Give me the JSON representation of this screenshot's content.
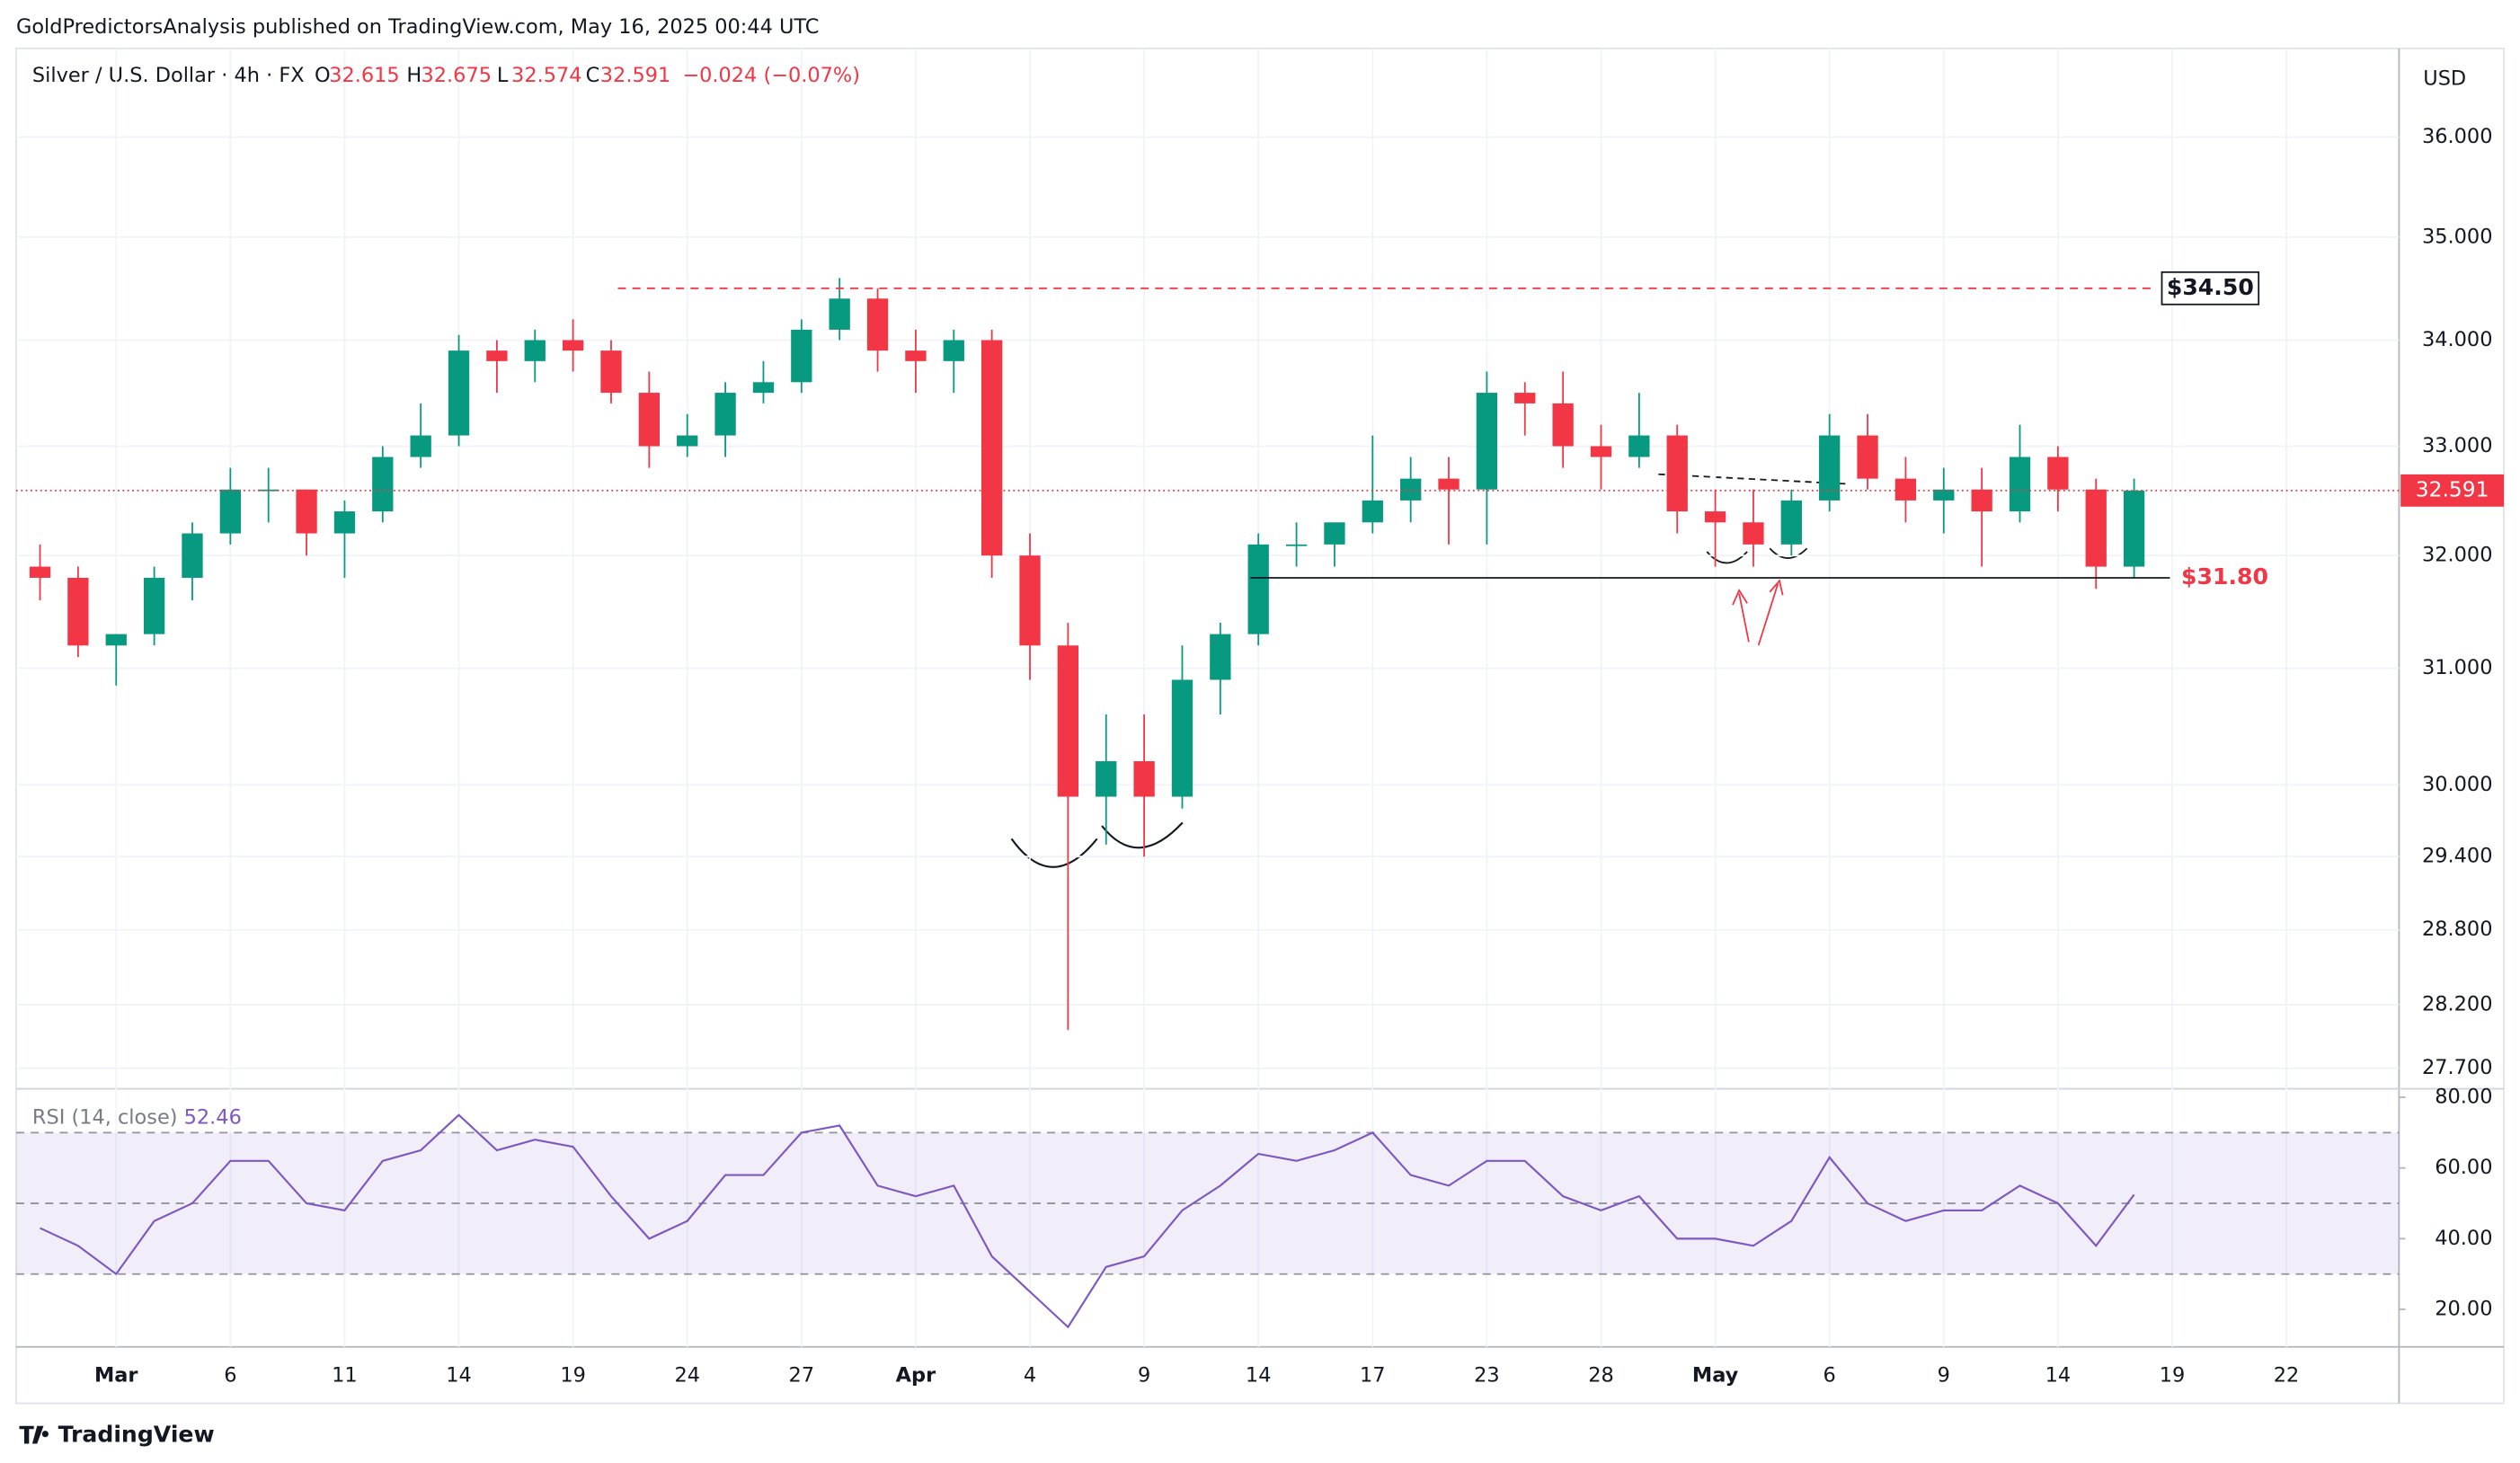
{
  "header": {
    "publisher": "GoldPredictorsAnalysis published on TradingView.com, May 16, 2025 00:44 UTC",
    "footer": "TradingView"
  },
  "chart_data": [
    {
      "type": "candlestick",
      "title": "Silver / U.S. Dollar · 4h · FX",
      "ohlc_labels": [
        "O",
        "H",
        "L",
        "C"
      ],
      "ohlc_values": [
        32.615,
        32.675,
        32.574,
        32.591
      ],
      "change": "−0.024 (−0.07%)",
      "currency": "USD",
      "log_scale": true,
      "up_color": "#089981",
      "down_color": "#f23645",
      "categories": [
        null,
        null,
        "Mar",
        null,
        null,
        "6",
        null,
        null,
        "11",
        null,
        null,
        "14",
        null,
        null,
        "19",
        null,
        null,
        "24",
        null,
        null,
        "27",
        null,
        null,
        "Apr",
        null,
        null,
        "4",
        null,
        null,
        "9",
        null,
        null,
        "14",
        null,
        null,
        "17",
        null,
        null,
        "23",
        null,
        null,
        "28",
        null,
        null,
        "May",
        null,
        null,
        "6",
        null,
        null,
        "9",
        null,
        null,
        "14",
        null,
        null,
        "19",
        null,
        null,
        "22"
      ],
      "open": [
        31.9,
        31.8,
        31.2,
        31.3,
        31.8,
        32.2,
        32.6,
        32.6,
        32.2,
        32.4,
        32.9,
        33.1,
        33.9,
        33.8,
        34.0,
        33.9,
        33.5,
        33.0,
        33.1,
        33.5,
        33.6,
        34.1,
        34.4,
        33.9,
        33.8,
        34.0,
        32.0,
        31.2,
        29.9,
        30.2,
        29.9,
        30.9,
        31.3,
        32.1,
        32.1,
        32.3,
        32.5,
        32.7,
        32.6,
        33.5,
        33.4,
        33.0,
        32.9,
        33.1,
        32.4,
        32.3,
        32.1,
        32.5,
        33.1,
        32.7,
        32.5,
        32.6,
        32.4,
        32.9,
        32.6,
        31.9,
        null,
        null,
        null,
        null
      ],
      "high": [
        32.1,
        31.9,
        31.3,
        31.9,
        32.3,
        32.8,
        32.8,
        32.6,
        32.5,
        33.0,
        33.4,
        34.05,
        34.0,
        34.1,
        34.2,
        34.0,
        33.7,
        33.3,
        33.6,
        33.8,
        34.2,
        34.6,
        34.5,
        34.1,
        34.1,
        34.1,
        32.2,
        31.4,
        30.6,
        30.6,
        31.2,
        31.4,
        32.2,
        32.3,
        32.3,
        33.1,
        32.9,
        32.9,
        33.7,
        33.6,
        33.7,
        33.2,
        33.5,
        33.2,
        32.6,
        32.6,
        32.6,
        33.3,
        33.3,
        32.9,
        32.8,
        32.8,
        33.2,
        33.0,
        32.7,
        32.7,
        null,
        null,
        null,
        null
      ],
      "low": [
        31.6,
        31.1,
        30.85,
        31.2,
        31.6,
        32.1,
        32.3,
        32.0,
        31.8,
        32.3,
        32.8,
        33.0,
        33.5,
        33.6,
        33.7,
        33.4,
        32.8,
        32.9,
        32.9,
        33.4,
        33.5,
        34.0,
        33.7,
        33.5,
        33.5,
        31.8,
        30.9,
        28.0,
        29.5,
        29.4,
        29.8,
        30.6,
        31.2,
        31.9,
        31.9,
        32.2,
        32.3,
        32.1,
        32.1,
        33.1,
        32.8,
        32.6,
        32.8,
        32.2,
        31.9,
        31.9,
        32.0,
        32.4,
        32.6,
        32.3,
        32.2,
        31.9,
        32.3,
        32.4,
        31.7,
        31.8,
        null,
        null,
        null,
        null
      ],
      "close": [
        31.8,
        31.2,
        31.3,
        31.8,
        32.2,
        32.6,
        32.6,
        32.2,
        32.4,
        32.9,
        33.1,
        33.9,
        33.8,
        34.0,
        33.9,
        33.5,
        33.0,
        33.1,
        33.5,
        33.6,
        34.1,
        34.4,
        33.9,
        33.8,
        34.0,
        32.0,
        31.2,
        29.9,
        30.2,
        29.9,
        30.9,
        31.3,
        32.1,
        32.1,
        32.3,
        32.5,
        32.7,
        32.6,
        33.5,
        33.4,
        33.0,
        32.9,
        33.1,
        32.4,
        32.3,
        32.1,
        32.5,
        33.1,
        32.7,
        32.5,
        32.6,
        32.4,
        32.9,
        32.6,
        31.9,
        32.591,
        null,
        null,
        null,
        null
      ],
      "ylim": [
        27.54,
        36.91
      ],
      "yticks": [
        {
          "value": 36,
          "label": "36.000"
        },
        {
          "value": 35,
          "label": "35.000"
        },
        {
          "value": 34,
          "label": "34.000"
        },
        {
          "value": 33,
          "label": "33.000"
        },
        {
          "value": 32,
          "label": "32.000"
        },
        {
          "value": 31,
          "label": "31.000"
        },
        {
          "value": 30,
          "label": "30.000"
        },
        {
          "value": 29.4,
          "label": "29.400"
        },
        {
          "value": 28.8,
          "label": "28.800"
        },
        {
          "value": 28.2,
          "label": "28.200"
        },
        {
          "value": 27.7,
          "label": "27.700"
        }
      ],
      "annotations": [
        {
          "label": "$34.50",
          "value": 34.5
        },
        {
          "label": "$31.80",
          "value": 31.8
        }
      ]
    },
    {
      "type": "line",
      "title": "RSI (14, close)",
      "color": "#7e57c2",
      "values": [
        43,
        38,
        30,
        45,
        50,
        62,
        62,
        50,
        48,
        62,
        65,
        75,
        65,
        68,
        66,
        52,
        40,
        45,
        58,
        58,
        70,
        72,
        55,
        52,
        55,
        35,
        25,
        15,
        32,
        35,
        48,
        55,
        64,
        62,
        65,
        70,
        58,
        55,
        62,
        62,
        52,
        48,
        52,
        40,
        40,
        38,
        45,
        63,
        50,
        45,
        48,
        48,
        55,
        50,
        38,
        52.46,
        null,
        null,
        null,
        null
      ],
      "ylim": [
        9.4,
        82.4
      ],
      "yticks": [
        {
          "value": 80,
          "label": "80.00"
        },
        {
          "value": 60,
          "label": "60.00"
        },
        {
          "value": 40,
          "label": "40.00"
        },
        {
          "value": 20,
          "label": "20.00"
        }
      ],
      "bands": [
        70,
        50,
        30
      ]
    }
  ]
}
